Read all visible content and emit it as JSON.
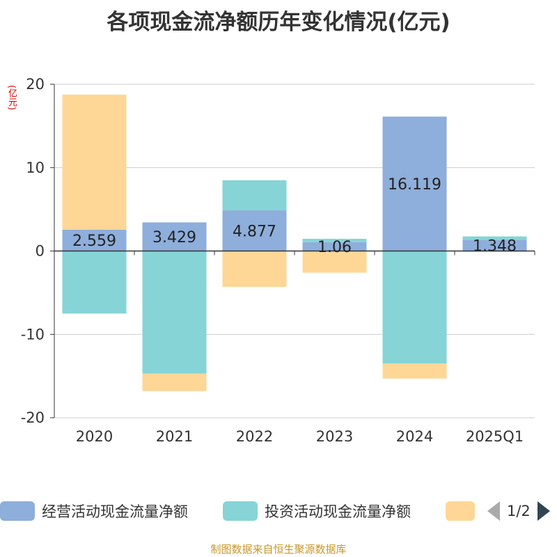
{
  "title": "各项现金流净额历年变化情况(亿元)",
  "unit_label": "(亿元)",
  "colors": {
    "operating": "#8eaedb",
    "investing": "#86d4d6",
    "financing": "#fed796",
    "axis": "#333333",
    "grid": "#cccccc"
  },
  "legend": {
    "items": [
      {
        "label": "经营活动现金流量净额",
        "color": "#8eaedb"
      },
      {
        "label": "投资活动现金流量净额",
        "color": "#86d4d6"
      },
      {
        "label": "",
        "color": "#fed796"
      }
    ],
    "page": "1/2"
  },
  "footer": "制图数据来自恒生聚源数据库",
  "chart_data": {
    "type": "bar",
    "stacked": true,
    "categories": [
      "2020",
      "2021",
      "2022",
      "2023",
      "2024",
      "2025Q1"
    ],
    "ylim": [
      -20,
      20
    ],
    "yticks": [
      20,
      10,
      0,
      -10,
      -20
    ],
    "grid": true,
    "legend_position": "bottom",
    "series": [
      {
        "name": "经营活动现金流量净额",
        "values": [
          2.559,
          3.429,
          4.877,
          1.06,
          16.119,
          1.348
        ],
        "labels": [
          "2.559",
          "3.429",
          "4.877",
          "1.06",
          "16.119",
          "1.348"
        ]
      },
      {
        "name": "投资活动现金流量净额",
        "values": [
          -7.5,
          -14.7,
          3.6,
          0.4,
          -13.5,
          0.4
        ]
      },
      {
        "values": [
          16.2,
          -2.1,
          -4.3,
          -2.6,
          -1.8,
          -0.1
        ]
      }
    ]
  }
}
